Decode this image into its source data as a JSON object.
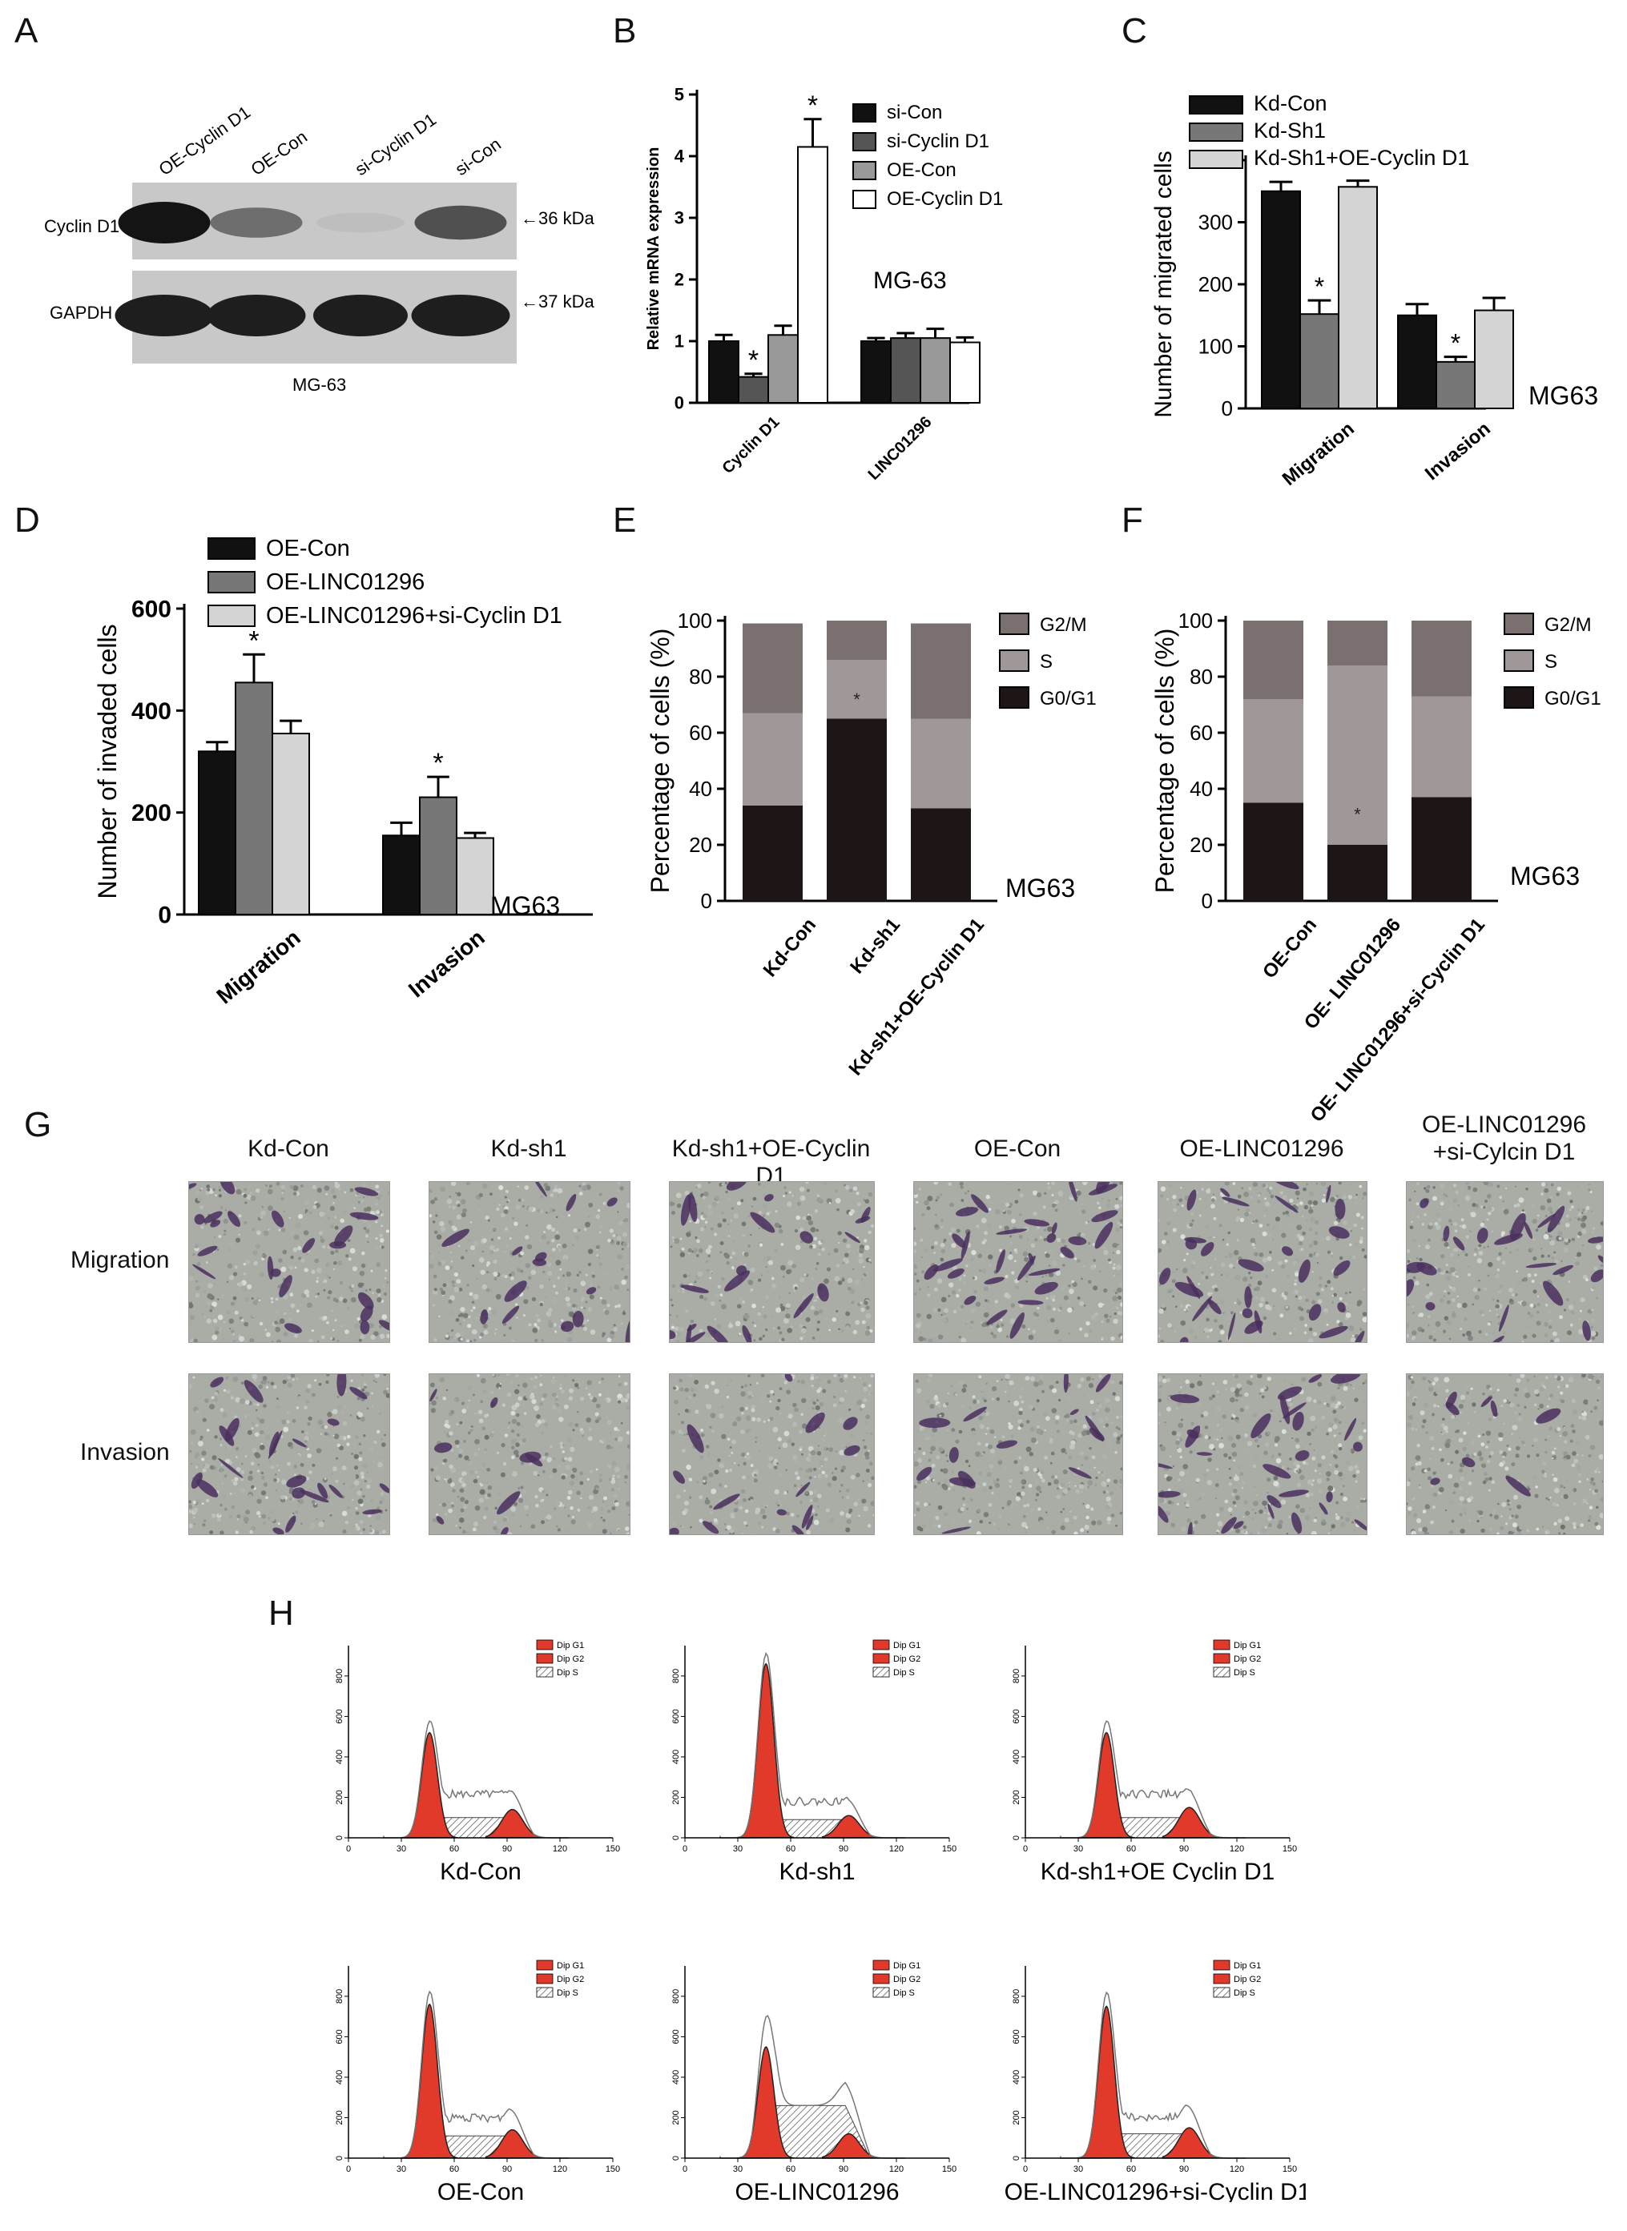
{
  "panel_letters": {
    "A": "A",
    "B": "B",
    "C": "C",
    "D": "D",
    "E": "E",
    "F": "F",
    "G": "G",
    "H": "H"
  },
  "blot": {
    "lanes": [
      "OE-Cyclin D1",
      "OE-Con",
      "si-Cyclin D1",
      "si-Con"
    ],
    "rows": [
      "Cyclin D1",
      "GAPDH"
    ],
    "markers": [
      "←36 kDa",
      "←37 kDa"
    ],
    "caption": "MG-63",
    "band_intensity": {
      "Cyclin D1": [
        1.0,
        0.55,
        0.15,
        0.7
      ],
      "GAPDH": [
        1.0,
        1.0,
        1.0,
        1.0
      ]
    }
  },
  "chart_data": [
    {
      "id": "B",
      "type": "bar",
      "categories": [
        "Cyclin D1",
        "LINC01296"
      ],
      "series": [
        {
          "name": "si-Con",
          "values": [
            1.0,
            1.0
          ],
          "errors": [
            0.1,
            0.05
          ],
          "color": "#111111"
        },
        {
          "name": "si-Cyclin D1",
          "values": [
            0.42,
            1.05
          ],
          "errors": [
            0.05,
            0.08
          ],
          "color": "#555555"
        },
        {
          "name": "OE-Con",
          "values": [
            1.1,
            1.05
          ],
          "errors": [
            0.15,
            0.15
          ],
          "color": "#999999"
        },
        {
          "name": "OE-Cyclin D1",
          "values": [
            4.15,
            0.98
          ],
          "errors": [
            0.45,
            0.08
          ],
          "color": "#ffffff"
        }
      ],
      "stars": [
        [
          0,
          1
        ],
        [
          0,
          3
        ]
      ],
      "ylabel": "Relative mRNA expression",
      "ylim": [
        0,
        5
      ],
      "yticks": [
        0,
        1,
        2,
        3,
        4,
        5
      ],
      "annotation": "MG-63"
    },
    {
      "id": "C",
      "type": "bar",
      "categories": [
        "Migration",
        "Invasion"
      ],
      "series": [
        {
          "name": "Kd-Con",
          "values": [
            350,
            150
          ],
          "errors": [
            15,
            18
          ],
          "color": "#111111"
        },
        {
          "name": "Kd-Sh1",
          "values": [
            152,
            75
          ],
          "errors": [
            22,
            8
          ],
          "color": "#777777"
        },
        {
          "name": "Kd-Sh1+OE-Cyclin D1",
          "values": [
            357,
            158
          ],
          "errors": [
            10,
            20
          ],
          "color": "#d4d4d4"
        }
      ],
      "stars": [
        [
          0,
          1
        ],
        [
          1,
          1
        ]
      ],
      "ylabel": "Number of migrated cells",
      "ylim": [
        0,
        400
      ],
      "yticks": [
        0,
        100,
        200,
        300,
        400
      ],
      "annotation": "MG63"
    },
    {
      "id": "D",
      "type": "bar",
      "categories": [
        "Migration",
        "Invasion"
      ],
      "series": [
        {
          "name": "OE-Con",
          "values": [
            320,
            155
          ],
          "errors": [
            18,
            25
          ],
          "color": "#111111"
        },
        {
          "name": "OE-LINC01296",
          "values": [
            455,
            230
          ],
          "errors": [
            55,
            40
          ],
          "color": "#777777"
        },
        {
          "name": "OE-LINC01296+si-Cyclin D1",
          "values": [
            355,
            150
          ],
          "errors": [
            25,
            10
          ],
          "color": "#d4d4d4"
        }
      ],
      "stars": [
        [
          0,
          1
        ],
        [
          1,
          1
        ]
      ],
      "ylabel": "Number of invaded cells",
      "ylim": [
        0,
        600
      ],
      "yticks": [
        0,
        200,
        400,
        600
      ],
      "annotation": "MG63"
    },
    {
      "id": "E",
      "type": "bar",
      "stacked": true,
      "categories": [
        "Kd-Con",
        "Kd-sh1",
        "Kd-sh1+OE-Cyclin D1"
      ],
      "series": [
        {
          "name": "G0/G1",
          "values": [
            34,
            65,
            33
          ],
          "errors": [
            8,
            3,
            10
          ],
          "color": "#1e1616"
        },
        {
          "name": "S",
          "values": [
            33,
            21,
            32
          ],
          "color": "#a09898"
        },
        {
          "name": "G2/M",
          "values": [
            32,
            14,
            34
          ],
          "color": "#7a7070"
        }
      ],
      "stars": [
        [
          1,
          0
        ]
      ],
      "ylabel": "Percentage of cells (%)",
      "ylim": [
        0,
        100
      ],
      "yticks": [
        0,
        20,
        40,
        60,
        80,
        100
      ],
      "annotation": "MG63"
    },
    {
      "id": "F",
      "type": "bar",
      "stacked": true,
      "categories": [
        "OE-Con",
        "OE- LINC01296",
        "OE- LINC01296+si-Cyclin D1"
      ],
      "series": [
        {
          "name": "G0/G1",
          "values": [
            35,
            20,
            37
          ],
          "errors": [
            7,
            7,
            3
          ],
          "color": "#1e1616"
        },
        {
          "name": "S",
          "values": [
            37,
            64,
            36
          ],
          "color": "#a09898"
        },
        {
          "name": "G2/M",
          "values": [
            28,
            16,
            27
          ],
          "color": "#7a7070"
        }
      ],
      "stars": [
        [
          1,
          0
        ]
      ],
      "ylabel": "Percentage of cells (%)",
      "ylim": [
        0,
        100
      ],
      "yticks": [
        0,
        20,
        40,
        60,
        80,
        100
      ],
      "annotation": "MG63"
    },
    {
      "id": "H",
      "type": "area",
      "xticks": [
        0,
        30,
        60,
        90,
        120,
        150
      ],
      "yticks": [
        0,
        200,
        400,
        600,
        800
      ],
      "xlim": [
        0,
        150
      ],
      "ylim": [
        0,
        950
      ],
      "legend": [
        "Dip G1",
        "Dip G2",
        "Dip S"
      ],
      "histograms": [
        {
          "label": "Kd-Con",
          "g1_peak": 520,
          "g2_peak": 140,
          "s_level": 100,
          "shoulder": 360
        },
        {
          "label": "Kd-sh1",
          "g1_peak": 860,
          "g2_peak": 110,
          "s_level": 90,
          "shoulder": 300
        },
        {
          "label": "Kd-sh1+OE Cyclin D1",
          "g1_peak": 520,
          "g2_peak": 150,
          "s_level": 100,
          "shoulder": 360
        },
        {
          "label": "OE-Con",
          "g1_peak": 760,
          "g2_peak": 140,
          "s_level": 110,
          "shoulder": 330
        },
        {
          "label": "OE-LINC01296",
          "g1_peak": 550,
          "g2_peak": 120,
          "s_level": 260,
          "shoulder": 270
        },
        {
          "label": "OE-LINC01296+si-Cyclin D1",
          "g1_peak": 750,
          "g2_peak": 150,
          "s_level": 120,
          "shoulder": 340
        }
      ]
    }
  ],
  "micrographs": {
    "columns": [
      "Kd-Con",
      "Kd-sh1",
      "Kd-sh1+OE-Cyclin D1",
      "OE-Con",
      "OE-LINC01296",
      "OE-LINC01296\n+si-Cylcin D1"
    ],
    "rows": [
      "Migration",
      "Invasion"
    ],
    "cell_density": [
      [
        0.55,
        0.35,
        0.5,
        0.7,
        0.75,
        0.55
      ],
      [
        0.55,
        0.2,
        0.35,
        0.35,
        0.7,
        0.2
      ]
    ]
  }
}
